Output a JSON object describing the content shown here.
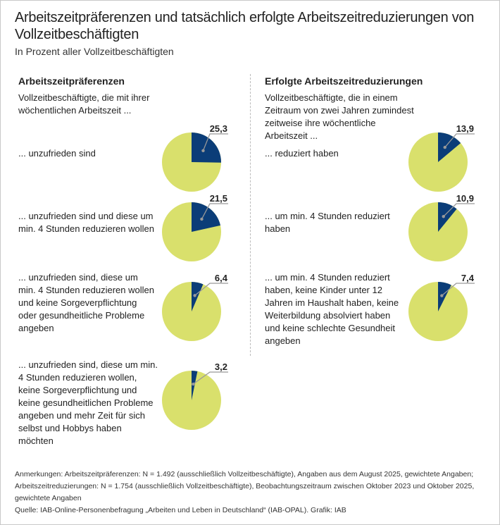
{
  "title": "Arbeitszeitpräferenzen und tatsächlich erfolgte Arbeitszeitreduzierungen von Vollzeitbeschäftigten",
  "subtitle": "In Prozent aller Vollzeitbeschäftigten",
  "colors": {
    "slice": "#0b3d78",
    "rest": "#d9e06c",
    "leader": "#999999"
  },
  "chart_data": [
    {
      "type": "pie",
      "title": "Arbeitszeitpräferenzen",
      "intro": "Vollzeitbeschäftigte, die mit ihrer wöchentlichen Arbeitszeit ...",
      "categories": [
        "... unzufrieden sind",
        "... unzufrieden sind und diese um min. 4 Stunden reduzieren wollen",
        "... unzufrieden sind, diese um min. 4 Stunden reduzieren wollen und keine Sorgeverpflichtung oder gesundheitliche Probleme angeben",
        "... unzufrieden sind, diese um min. 4 Stunden reduzieren wollen, keine Sorgeverpflichtung und keine gesundheitlichen Probleme angeben und mehr Zeit für sich selbst und Hobbys haben möchten"
      ],
      "values": [
        25.3,
        21.5,
        6.4,
        3.2
      ],
      "labels": [
        "25,3",
        "21,5",
        "6,4",
        "3,2"
      ]
    },
    {
      "type": "pie",
      "title": "Erfolgte Arbeitszeitreduzierungen",
      "intro": "Vollzeitbeschäftigte, die in einem Zeitraum von zwei Jahren  zumindest zeitweise ihre wöchentliche Arbeitszeit ...",
      "categories": [
        "... reduziert haben",
        "... um min. 4 Stunden reduziert haben",
        "... um min. 4 Stunden reduziert haben, keine Kinder unter 12 Jahren im Haushalt haben, keine Weiterbildung absolviert haben und keine schlechte Gesundheit angeben"
      ],
      "values": [
        13.9,
        10.9,
        7.4
      ],
      "labels": [
        "13,9",
        "10,9",
        "7,4"
      ]
    }
  ],
  "notes": {
    "line1": "Anmerkungen: Arbeitszeitpräferenzen: N = 1.492 (ausschließlich Vollzeitbeschäftigte), Angaben aus dem August 2025, gewichtete Angaben;",
    "line2": "Arbeitszeitreduzierungen: N = 1.754 (ausschließlich Vollzeitbeschäftigte), Beobachtungszeitraum zwischen Oktober 2023 und Oktober 2025,",
    "line3": "gewichtete Angaben",
    "source": "Quelle: IAB-Online-Personenbefragung „Arbeiten und Leben in Deutschland“ (IAB-OPAL). Grafik: IAB"
  }
}
